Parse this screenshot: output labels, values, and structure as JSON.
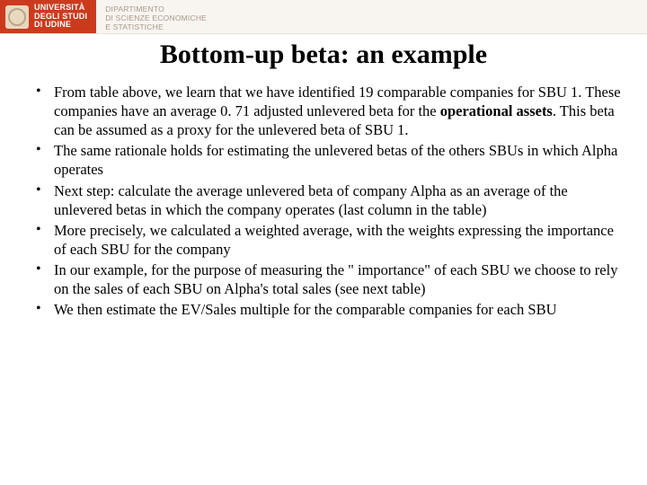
{
  "header": {
    "logo_line1": "UNIVERSITÀ",
    "logo_line2": "DEGLI STUDI",
    "logo_line3": "DI UDINE",
    "dept_line1": "DIPARTIMENTO",
    "dept_line2": "DI SCIENZE ECONOMICHE",
    "dept_line3": "E STATISTICHE",
    "logo_bg": "#cc3a1e",
    "bar_bg": "#f8f4f0",
    "dept_color": "#a89888"
  },
  "title": "Bottom-up beta: an example",
  "bullets": {
    "b1a": "From table above, we learn that we have identified 19 comparable companies for SBU 1. These companies have an average 0. 71 adjusted unlevered beta for the ",
    "b1b": "operational assets",
    "b1c": ". This beta can be assumed as a proxy for the unlevered beta of SBU 1.",
    "b2": "The same rationale holds for estimating the unlevered betas of the others SBUs in which Alpha operates",
    "b3": "Next step: calculate the average unlevered beta of company Alpha as an average of the unlevered betas in which the company operates (last column in the table)",
    "b4": "More precisely, we calculated a weighted average, with the weights expressing the importance of each SBU for the company",
    "b5": "In our example, for the purpose of measuring the \" importance\" of each SBU we choose to rely on the sales of each SBU on Alpha's total sales (see next table)",
    "b6": "We then estimate the EV/Sales multiple for the comparable companies for each SBU"
  },
  "style": {
    "title_fontsize": 30,
    "body_fontsize": 16.5,
    "text_color": "#000000",
    "background": "#ffffff"
  }
}
